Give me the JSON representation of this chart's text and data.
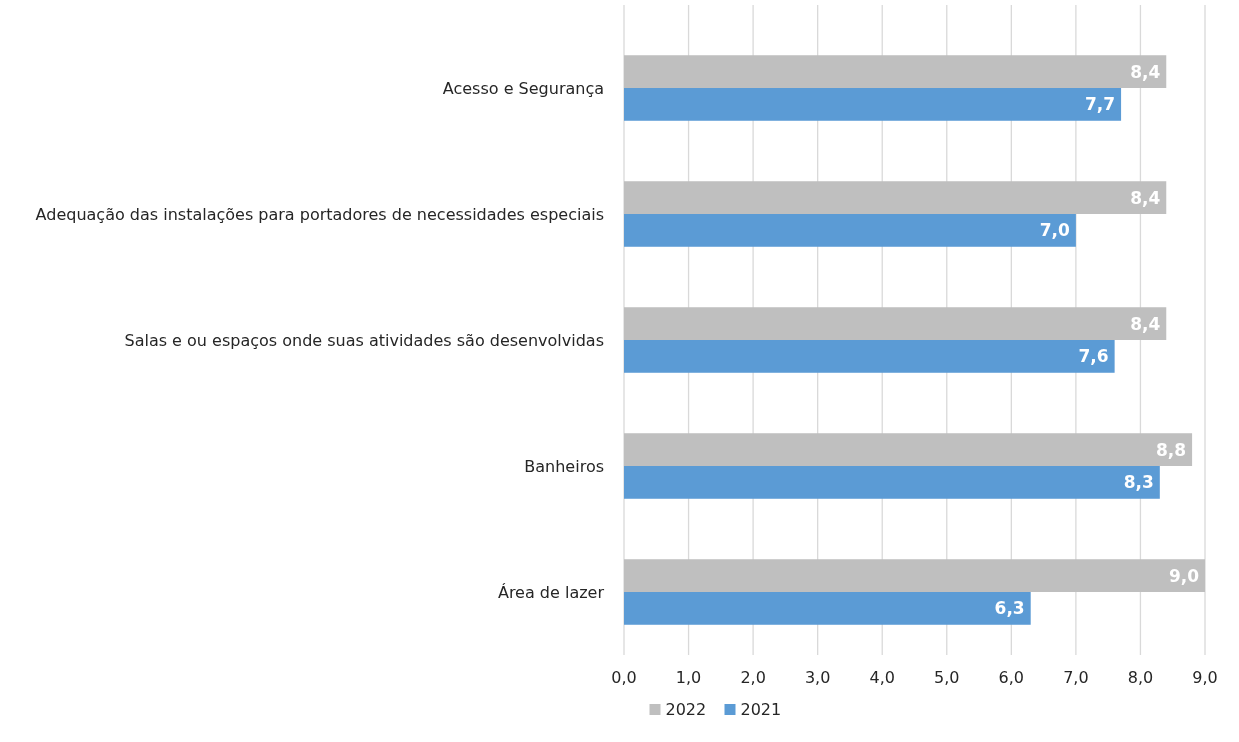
{
  "chart_data": {
    "type": "bar",
    "orientation": "horizontal",
    "categories": [
      "Acesso e Segurança",
      "Adequação das instalações para portadores de necessidades especiais",
      "Salas e ou espaços onde suas atividades são desenvolvidas",
      "Banheiros",
      "Área de lazer"
    ],
    "series": [
      {
        "name": "2022",
        "color": "#bfbfbf",
        "values": [
          8.4,
          8.4,
          8.4,
          8.8,
          9.0
        ],
        "value_labels": [
          "8,4",
          "8,4",
          "8,4",
          "8,8",
          "9,0"
        ]
      },
      {
        "name": "2021",
        "color": "#5b9bd5",
        "values": [
          7.7,
          7.0,
          7.6,
          8.3,
          6.3
        ],
        "value_labels": [
          "7,7",
          "7,0",
          "7,6",
          "8,3",
          "6,3"
        ]
      }
    ],
    "xlim": [
      0,
      9
    ],
    "xticks": [
      {
        "value": 0,
        "label": "0,0"
      },
      {
        "value": 1,
        "label": "1,0"
      },
      {
        "value": 2,
        "label": "2,0"
      },
      {
        "value": 3,
        "label": "3,0"
      },
      {
        "value": 4,
        "label": "4,0"
      },
      {
        "value": 5,
        "label": "5,0"
      },
      {
        "value": 6,
        "label": "6,0"
      },
      {
        "value": 7,
        "label": "7,0"
      },
      {
        "value": 8,
        "label": "8,0"
      },
      {
        "value": 9,
        "label": "9,0"
      }
    ],
    "grid": "x",
    "legend": "bottom"
  }
}
